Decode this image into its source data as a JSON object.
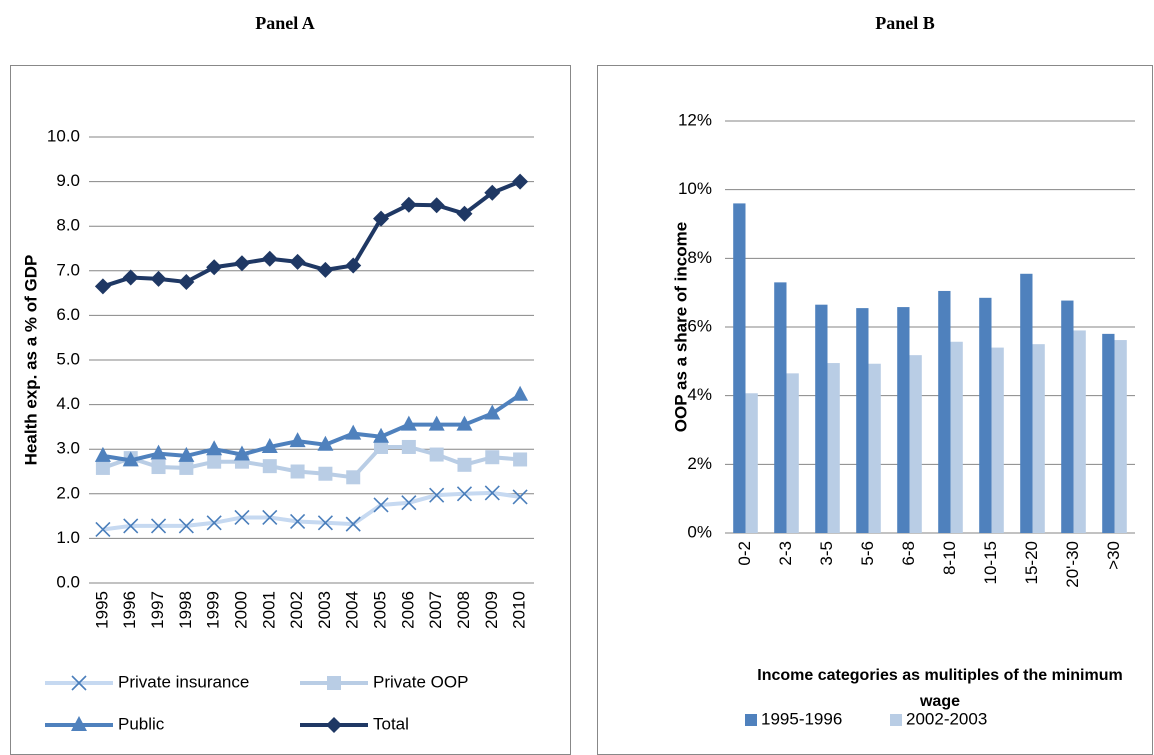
{
  "chart_data": [
    {
      "type": "line",
      "title": "Panel A",
      "y_label": "Health exp. as a % of GDP",
      "categories": [
        "1995",
        "1996",
        "1997",
        "1998",
        "1999",
        "2000",
        "2001",
        "2002",
        "2003",
        "2004",
        "2005",
        "2006",
        "2007",
        "2008",
        "2009",
        "2010"
      ],
      "ylim": [
        0,
        10
      ],
      "yticks": [
        {
          "value": 0,
          "label": "0.0"
        },
        {
          "value": 1,
          "label": "1.0"
        },
        {
          "value": 2,
          "label": "2.0"
        },
        {
          "value": 3,
          "label": "3.0"
        },
        {
          "value": 4,
          "label": "4.0"
        },
        {
          "value": 5,
          "label": "5.0"
        },
        {
          "value": 6,
          "label": "6.0"
        },
        {
          "value": 7,
          "label": "7.0"
        },
        {
          "value": 8,
          "label": "8.0"
        },
        {
          "value": 9,
          "label": "9.0"
        },
        {
          "value": 10,
          "label": "10.0"
        }
      ],
      "grid": true,
      "series": [
        {
          "name": "Private insurance",
          "color": "#c6d9f1",
          "marker_color": "#4a7ebb",
          "marker": "x",
          "values": [
            1.2,
            1.28,
            1.28,
            1.28,
            1.35,
            1.47,
            1.47,
            1.38,
            1.35,
            1.32,
            1.75,
            1.8,
            1.97,
            2.0,
            2.02,
            1.93
          ]
        },
        {
          "name": "Private OOP",
          "color": "#b9cde5",
          "marker_color": "#b9cde5",
          "marker": "square",
          "values": [
            2.58,
            2.8,
            2.6,
            2.58,
            2.72,
            2.72,
            2.62,
            2.5,
            2.45,
            2.37,
            3.05,
            3.05,
            2.88,
            2.65,
            2.82,
            2.77
          ]
        },
        {
          "name": "Public",
          "color": "#4f81bd",
          "marker_color": "#4f81bd",
          "marker": "triangle",
          "values": [
            2.85,
            2.75,
            2.9,
            2.85,
            3.0,
            2.88,
            3.05,
            3.18,
            3.1,
            3.35,
            3.28,
            3.55,
            3.55,
            3.55,
            3.8,
            4.22
          ]
        },
        {
          "name": "Total",
          "color": "#1f3864",
          "marker_color": "#1f3864",
          "marker": "diamond",
          "values": [
            6.65,
            6.85,
            6.82,
            6.75,
            7.08,
            7.17,
            7.27,
            7.2,
            7.02,
            7.12,
            8.17,
            8.48,
            8.47,
            8.28,
            8.75,
            9.0
          ]
        }
      ]
    },
    {
      "type": "bar",
      "title": "Panel B",
      "y_label": "OOP as a share of income",
      "x_label": "Income categories as mulitiples of the minimum wage",
      "categories": [
        "0-2",
        "2-3",
        "3-5",
        "5-6",
        "6-8",
        "8-10",
        "10-15",
        "15-20",
        "20'-30",
        ">30"
      ],
      "ylim": [
        0,
        12
      ],
      "yticks": [
        {
          "value": 0,
          "label": "0%"
        },
        {
          "value": 2,
          "label": "2%"
        },
        {
          "value": 4,
          "label": "4%"
        },
        {
          "value": 6,
          "label": "6%"
        },
        {
          "value": 8,
          "label": "8%"
        },
        {
          "value": 10,
          "label": "10%"
        },
        {
          "value": 12,
          "label": "12%"
        }
      ],
      "grid": true,
      "series": [
        {
          "name": "1995-1996",
          "color": "#4f81bd",
          "values": [
            9.6,
            7.3,
            6.65,
            6.55,
            6.58,
            7.05,
            6.85,
            7.55,
            6.77,
            5.8
          ]
        },
        {
          "name": "2002-2003",
          "color": "#b9cde5",
          "values": [
            4.07,
            4.65,
            4.95,
            4.93,
            5.18,
            5.57,
            5.4,
            5.5,
            5.9,
            5.62
          ]
        }
      ]
    }
  ]
}
